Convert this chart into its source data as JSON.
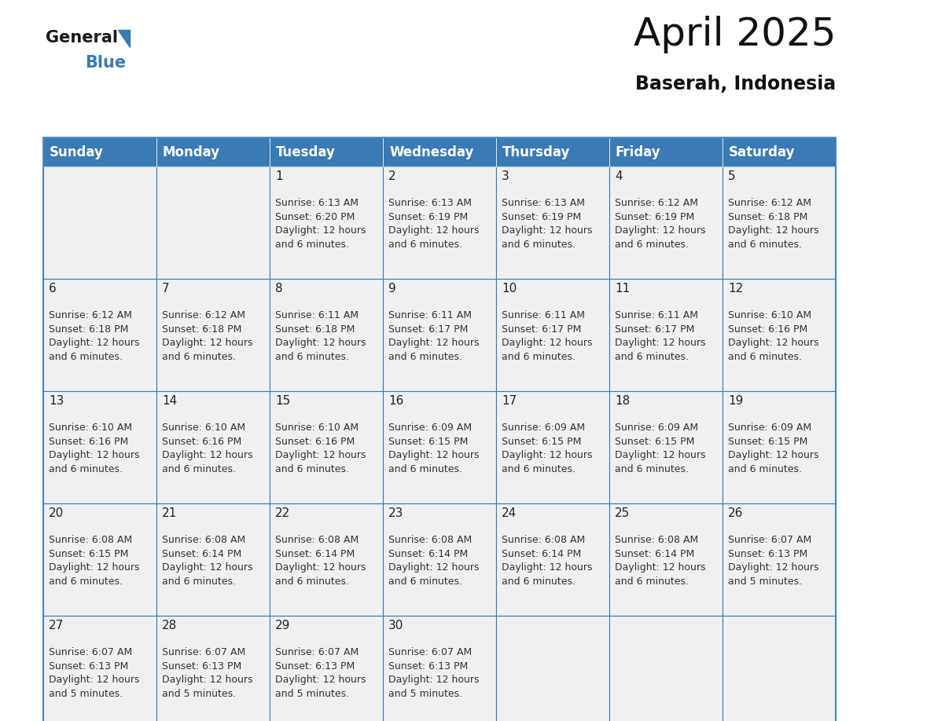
{
  "title": "April 2025",
  "subtitle": "Baserah, Indonesia",
  "header_bg_color": "#3a7ab5",
  "header_text_color": "#ffffff",
  "cell_bg_color": "#f0f0f0",
  "grid_line_color": "#3a7ab5",
  "text_color": "#333333",
  "day_number_color": "#222222",
  "day_names": [
    "Sunday",
    "Monday",
    "Tuesday",
    "Wednesday",
    "Thursday",
    "Friday",
    "Saturday"
  ],
  "days": [
    {
      "day": 1,
      "col": 2,
      "row": 0,
      "sunrise": "6:13 AM",
      "sunset": "6:20 PM",
      "daylight_line1": "Daylight: 12 hours",
      "daylight_line2": "and 6 minutes."
    },
    {
      "day": 2,
      "col": 3,
      "row": 0,
      "sunrise": "6:13 AM",
      "sunset": "6:19 PM",
      "daylight_line1": "Daylight: 12 hours",
      "daylight_line2": "and 6 minutes."
    },
    {
      "day": 3,
      "col": 4,
      "row": 0,
      "sunrise": "6:13 AM",
      "sunset": "6:19 PM",
      "daylight_line1": "Daylight: 12 hours",
      "daylight_line2": "and 6 minutes."
    },
    {
      "day": 4,
      "col": 5,
      "row": 0,
      "sunrise": "6:12 AM",
      "sunset": "6:19 PM",
      "daylight_line1": "Daylight: 12 hours",
      "daylight_line2": "and 6 minutes."
    },
    {
      "day": 5,
      "col": 6,
      "row": 0,
      "sunrise": "6:12 AM",
      "sunset": "6:18 PM",
      "daylight_line1": "Daylight: 12 hours",
      "daylight_line2": "and 6 minutes."
    },
    {
      "day": 6,
      "col": 0,
      "row": 1,
      "sunrise": "6:12 AM",
      "sunset": "6:18 PM",
      "daylight_line1": "Daylight: 12 hours",
      "daylight_line2": "and 6 minutes."
    },
    {
      "day": 7,
      "col": 1,
      "row": 1,
      "sunrise": "6:12 AM",
      "sunset": "6:18 PM",
      "daylight_line1": "Daylight: 12 hours",
      "daylight_line2": "and 6 minutes."
    },
    {
      "day": 8,
      "col": 2,
      "row": 1,
      "sunrise": "6:11 AM",
      "sunset": "6:18 PM",
      "daylight_line1": "Daylight: 12 hours",
      "daylight_line2": "and 6 minutes."
    },
    {
      "day": 9,
      "col": 3,
      "row": 1,
      "sunrise": "6:11 AM",
      "sunset": "6:17 PM",
      "daylight_line1": "Daylight: 12 hours",
      "daylight_line2": "and 6 minutes."
    },
    {
      "day": 10,
      "col": 4,
      "row": 1,
      "sunrise": "6:11 AM",
      "sunset": "6:17 PM",
      "daylight_line1": "Daylight: 12 hours",
      "daylight_line2": "and 6 minutes."
    },
    {
      "day": 11,
      "col": 5,
      "row": 1,
      "sunrise": "6:11 AM",
      "sunset": "6:17 PM",
      "daylight_line1": "Daylight: 12 hours",
      "daylight_line2": "and 6 minutes."
    },
    {
      "day": 12,
      "col": 6,
      "row": 1,
      "sunrise": "6:10 AM",
      "sunset": "6:16 PM",
      "daylight_line1": "Daylight: 12 hours",
      "daylight_line2": "and 6 minutes."
    },
    {
      "day": 13,
      "col": 0,
      "row": 2,
      "sunrise": "6:10 AM",
      "sunset": "6:16 PM",
      "daylight_line1": "Daylight: 12 hours",
      "daylight_line2": "and 6 minutes."
    },
    {
      "day": 14,
      "col": 1,
      "row": 2,
      "sunrise": "6:10 AM",
      "sunset": "6:16 PM",
      "daylight_line1": "Daylight: 12 hours",
      "daylight_line2": "and 6 minutes."
    },
    {
      "day": 15,
      "col": 2,
      "row": 2,
      "sunrise": "6:10 AM",
      "sunset": "6:16 PM",
      "daylight_line1": "Daylight: 12 hours",
      "daylight_line2": "and 6 minutes."
    },
    {
      "day": 16,
      "col": 3,
      "row": 2,
      "sunrise": "6:09 AM",
      "sunset": "6:15 PM",
      "daylight_line1": "Daylight: 12 hours",
      "daylight_line2": "and 6 minutes."
    },
    {
      "day": 17,
      "col": 4,
      "row": 2,
      "sunrise": "6:09 AM",
      "sunset": "6:15 PM",
      "daylight_line1": "Daylight: 12 hours",
      "daylight_line2": "and 6 minutes."
    },
    {
      "day": 18,
      "col": 5,
      "row": 2,
      "sunrise": "6:09 AM",
      "sunset": "6:15 PM",
      "daylight_line1": "Daylight: 12 hours",
      "daylight_line2": "and 6 minutes."
    },
    {
      "day": 19,
      "col": 6,
      "row": 2,
      "sunrise": "6:09 AM",
      "sunset": "6:15 PM",
      "daylight_line1": "Daylight: 12 hours",
      "daylight_line2": "and 6 minutes."
    },
    {
      "day": 20,
      "col": 0,
      "row": 3,
      "sunrise": "6:08 AM",
      "sunset": "6:15 PM",
      "daylight_line1": "Daylight: 12 hours",
      "daylight_line2": "and 6 minutes."
    },
    {
      "day": 21,
      "col": 1,
      "row": 3,
      "sunrise": "6:08 AM",
      "sunset": "6:14 PM",
      "daylight_line1": "Daylight: 12 hours",
      "daylight_line2": "and 6 minutes."
    },
    {
      "day": 22,
      "col": 2,
      "row": 3,
      "sunrise": "6:08 AM",
      "sunset": "6:14 PM",
      "daylight_line1": "Daylight: 12 hours",
      "daylight_line2": "and 6 minutes."
    },
    {
      "day": 23,
      "col": 3,
      "row": 3,
      "sunrise": "6:08 AM",
      "sunset": "6:14 PM",
      "daylight_line1": "Daylight: 12 hours",
      "daylight_line2": "and 6 minutes."
    },
    {
      "day": 24,
      "col": 4,
      "row": 3,
      "sunrise": "6:08 AM",
      "sunset": "6:14 PM",
      "daylight_line1": "Daylight: 12 hours",
      "daylight_line2": "and 6 minutes."
    },
    {
      "day": 25,
      "col": 5,
      "row": 3,
      "sunrise": "6:08 AM",
      "sunset": "6:14 PM",
      "daylight_line1": "Daylight: 12 hours",
      "daylight_line2": "and 6 minutes."
    },
    {
      "day": 26,
      "col": 6,
      "row": 3,
      "sunrise": "6:07 AM",
      "sunset": "6:13 PM",
      "daylight_line1": "Daylight: 12 hours",
      "daylight_line2": "and 5 minutes."
    },
    {
      "day": 27,
      "col": 0,
      "row": 4,
      "sunrise": "6:07 AM",
      "sunset": "6:13 PM",
      "daylight_line1": "Daylight: 12 hours",
      "daylight_line2": "and 5 minutes."
    },
    {
      "day": 28,
      "col": 1,
      "row": 4,
      "sunrise": "6:07 AM",
      "sunset": "6:13 PM",
      "daylight_line1": "Daylight: 12 hours",
      "daylight_line2": "and 5 minutes."
    },
    {
      "day": 29,
      "col": 2,
      "row": 4,
      "sunrise": "6:07 AM",
      "sunset": "6:13 PM",
      "daylight_line1": "Daylight: 12 hours",
      "daylight_line2": "and 5 minutes."
    },
    {
      "day": 30,
      "col": 3,
      "row": 4,
      "sunrise": "6:07 AM",
      "sunset": "6:13 PM",
      "daylight_line1": "Daylight: 12 hours",
      "daylight_line2": "and 5 minutes."
    }
  ],
  "logo_general_color": "#1a1a1a",
  "logo_blue_color": "#3a7ab5",
  "logo_triangle_color": "#3a7ab5",
  "title_fontsize": 36,
  "subtitle_fontsize": 17,
  "header_fontsize": 12,
  "day_num_fontsize": 11,
  "cell_text_fontsize": 9
}
